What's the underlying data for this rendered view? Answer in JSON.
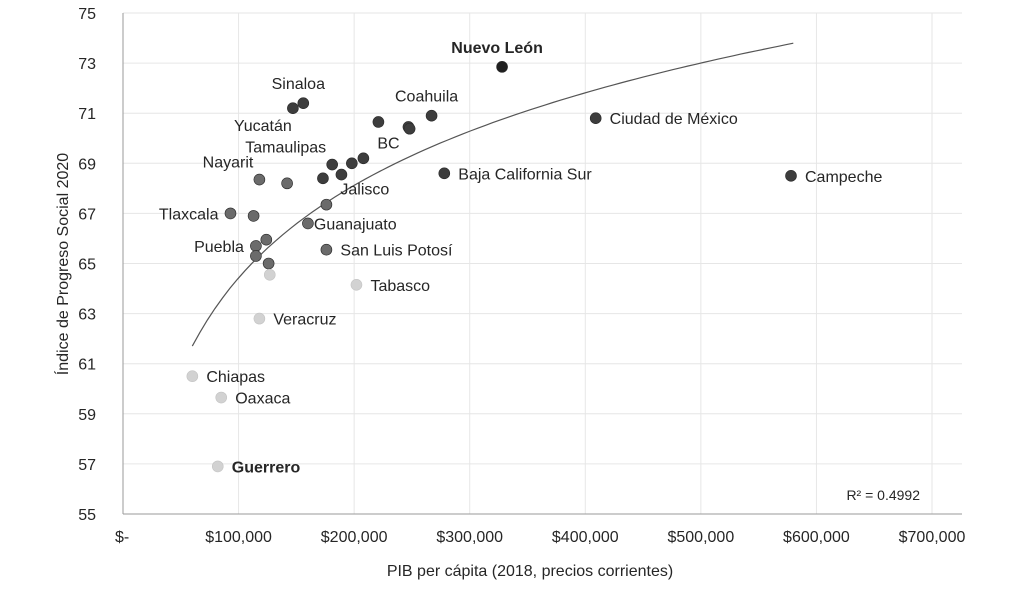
{
  "chart_data": {
    "type": "scatter",
    "title": "",
    "xlabel": "PIB per cápita (2018, precios corrientes)",
    "ylabel": "Índice de Progreso Social 2020",
    "xlim": [
      0,
      700000
    ],
    "ylim": [
      55,
      75
    ],
    "xticks": [
      0,
      100000,
      200000,
      300000,
      400000,
      500000,
      600000,
      700000
    ],
    "xtick_labels": [
      "$-",
      "$100,000",
      "$200,000",
      "$300,000",
      "$400,000",
      "$500,000",
      "$600,000",
      "$700,000"
    ],
    "yticks": [
      55,
      57,
      59,
      61,
      63,
      65,
      67,
      69,
      71,
      73,
      75
    ],
    "ytick_labels": [
      "55",
      "57",
      "59",
      "61",
      "63",
      "65",
      "67",
      "69",
      "71",
      "73",
      "75"
    ],
    "grid": true,
    "colors": {
      "darkest": "#1f1f1f",
      "dark": "#3d3d3d",
      "mid": "#6b6b6b",
      "light": "#d2d2d2",
      "trend": "#555555"
    },
    "trendline": {
      "type": "logarithmic",
      "a": 3.06,
      "b": 5.33,
      "x_range": [
        60000,
        580000
      ],
      "r2_label": "R² = 0.4992"
    },
    "points": [
      {
        "label": "Nuevo León",
        "x": 328000,
        "y": 72.85,
        "tone": "darkest",
        "bold": true,
        "pos": "above"
      },
      {
        "label": "Sinaloa",
        "x": 156000,
        "y": 71.4,
        "tone": "dark",
        "pos": "above"
      },
      {
        "label": "Yucatán",
        "x": 147000,
        "y": 71.2,
        "tone": "dark",
        "pos": "below-left"
      },
      {
        "label": "Coahuila",
        "x": 267000,
        "y": 70.9,
        "tone": "dark",
        "pos": "above"
      },
      {
        "label": "",
        "x": 221000,
        "y": 70.65,
        "tone": "dark"
      },
      {
        "label": "",
        "x": 247000,
        "y": 70.45,
        "tone": "dark"
      },
      {
        "label": "",
        "x": 248000,
        "y": 70.38,
        "tone": "dark"
      },
      {
        "label": "Ciudad de México",
        "x": 409000,
        "y": 70.8,
        "tone": "dark",
        "pos": "right"
      },
      {
        "label": "BC",
        "x": 208000,
        "y": 69.2,
        "tone": "dark",
        "pos": "above-right"
      },
      {
        "label": "",
        "x": 198000,
        "y": 69.0,
        "tone": "dark"
      },
      {
        "label": "Tamaulipas",
        "x": 181000,
        "y": 68.95,
        "tone": "dark",
        "pos": "above-left"
      },
      {
        "label": "",
        "x": 189000,
        "y": 68.55,
        "tone": "dark"
      },
      {
        "label": "",
        "x": 173000,
        "y": 68.4,
        "tone": "dark"
      },
      {
        "label": "Baja California Sur",
        "x": 278000,
        "y": 68.6,
        "tone": "dark",
        "pos": "right"
      },
      {
        "label": "Campeche",
        "x": 578000,
        "y": 68.5,
        "tone": "dark",
        "pos": "right"
      },
      {
        "label": "Nayarit",
        "x": 118000,
        "y": 68.35,
        "tone": "mid",
        "pos": "above-left"
      },
      {
        "label": "",
        "x": 142000,
        "y": 68.2,
        "tone": "mid"
      },
      {
        "label": "Jalisco",
        "x": 176000,
        "y": 67.35,
        "tone": "mid",
        "pos": "above-right"
      },
      {
        "label": "Tlaxcala",
        "x": 93000,
        "y": 67.0,
        "tone": "mid",
        "pos": "left"
      },
      {
        "label": "",
        "x": 113000,
        "y": 66.9,
        "tone": "mid"
      },
      {
        "label": "Guanajuato",
        "x": 160000,
        "y": 66.6,
        "tone": "mid",
        "pos": "right-tight"
      },
      {
        "label": "",
        "x": 124000,
        "y": 65.95,
        "tone": "mid"
      },
      {
        "label": "Puebla",
        "x": 115000,
        "y": 65.7,
        "tone": "mid",
        "pos": "left"
      },
      {
        "label": "",
        "x": 115000,
        "y": 65.3,
        "tone": "mid"
      },
      {
        "label": "",
        "x": 126000,
        "y": 65.0,
        "tone": "mid"
      },
      {
        "label": "San Luis Potosí",
        "x": 176000,
        "y": 65.55,
        "tone": "mid",
        "pos": "right"
      },
      {
        "label": "",
        "x": 127000,
        "y": 64.55,
        "tone": "light"
      },
      {
        "label": "Tabasco",
        "x": 202000,
        "y": 64.15,
        "tone": "light",
        "pos": "right"
      },
      {
        "label": "Veracruz",
        "x": 118000,
        "y": 62.8,
        "tone": "light",
        "pos": "right"
      },
      {
        "label": "Chiapas",
        "x": 60000,
        "y": 60.5,
        "tone": "light",
        "pos": "right"
      },
      {
        "label": "Oaxaca",
        "x": 85000,
        "y": 59.65,
        "tone": "light",
        "pos": "right"
      },
      {
        "label": "Guerrero",
        "x": 82000,
        "y": 56.9,
        "tone": "light",
        "bold": true,
        "pos": "right"
      }
    ]
  }
}
